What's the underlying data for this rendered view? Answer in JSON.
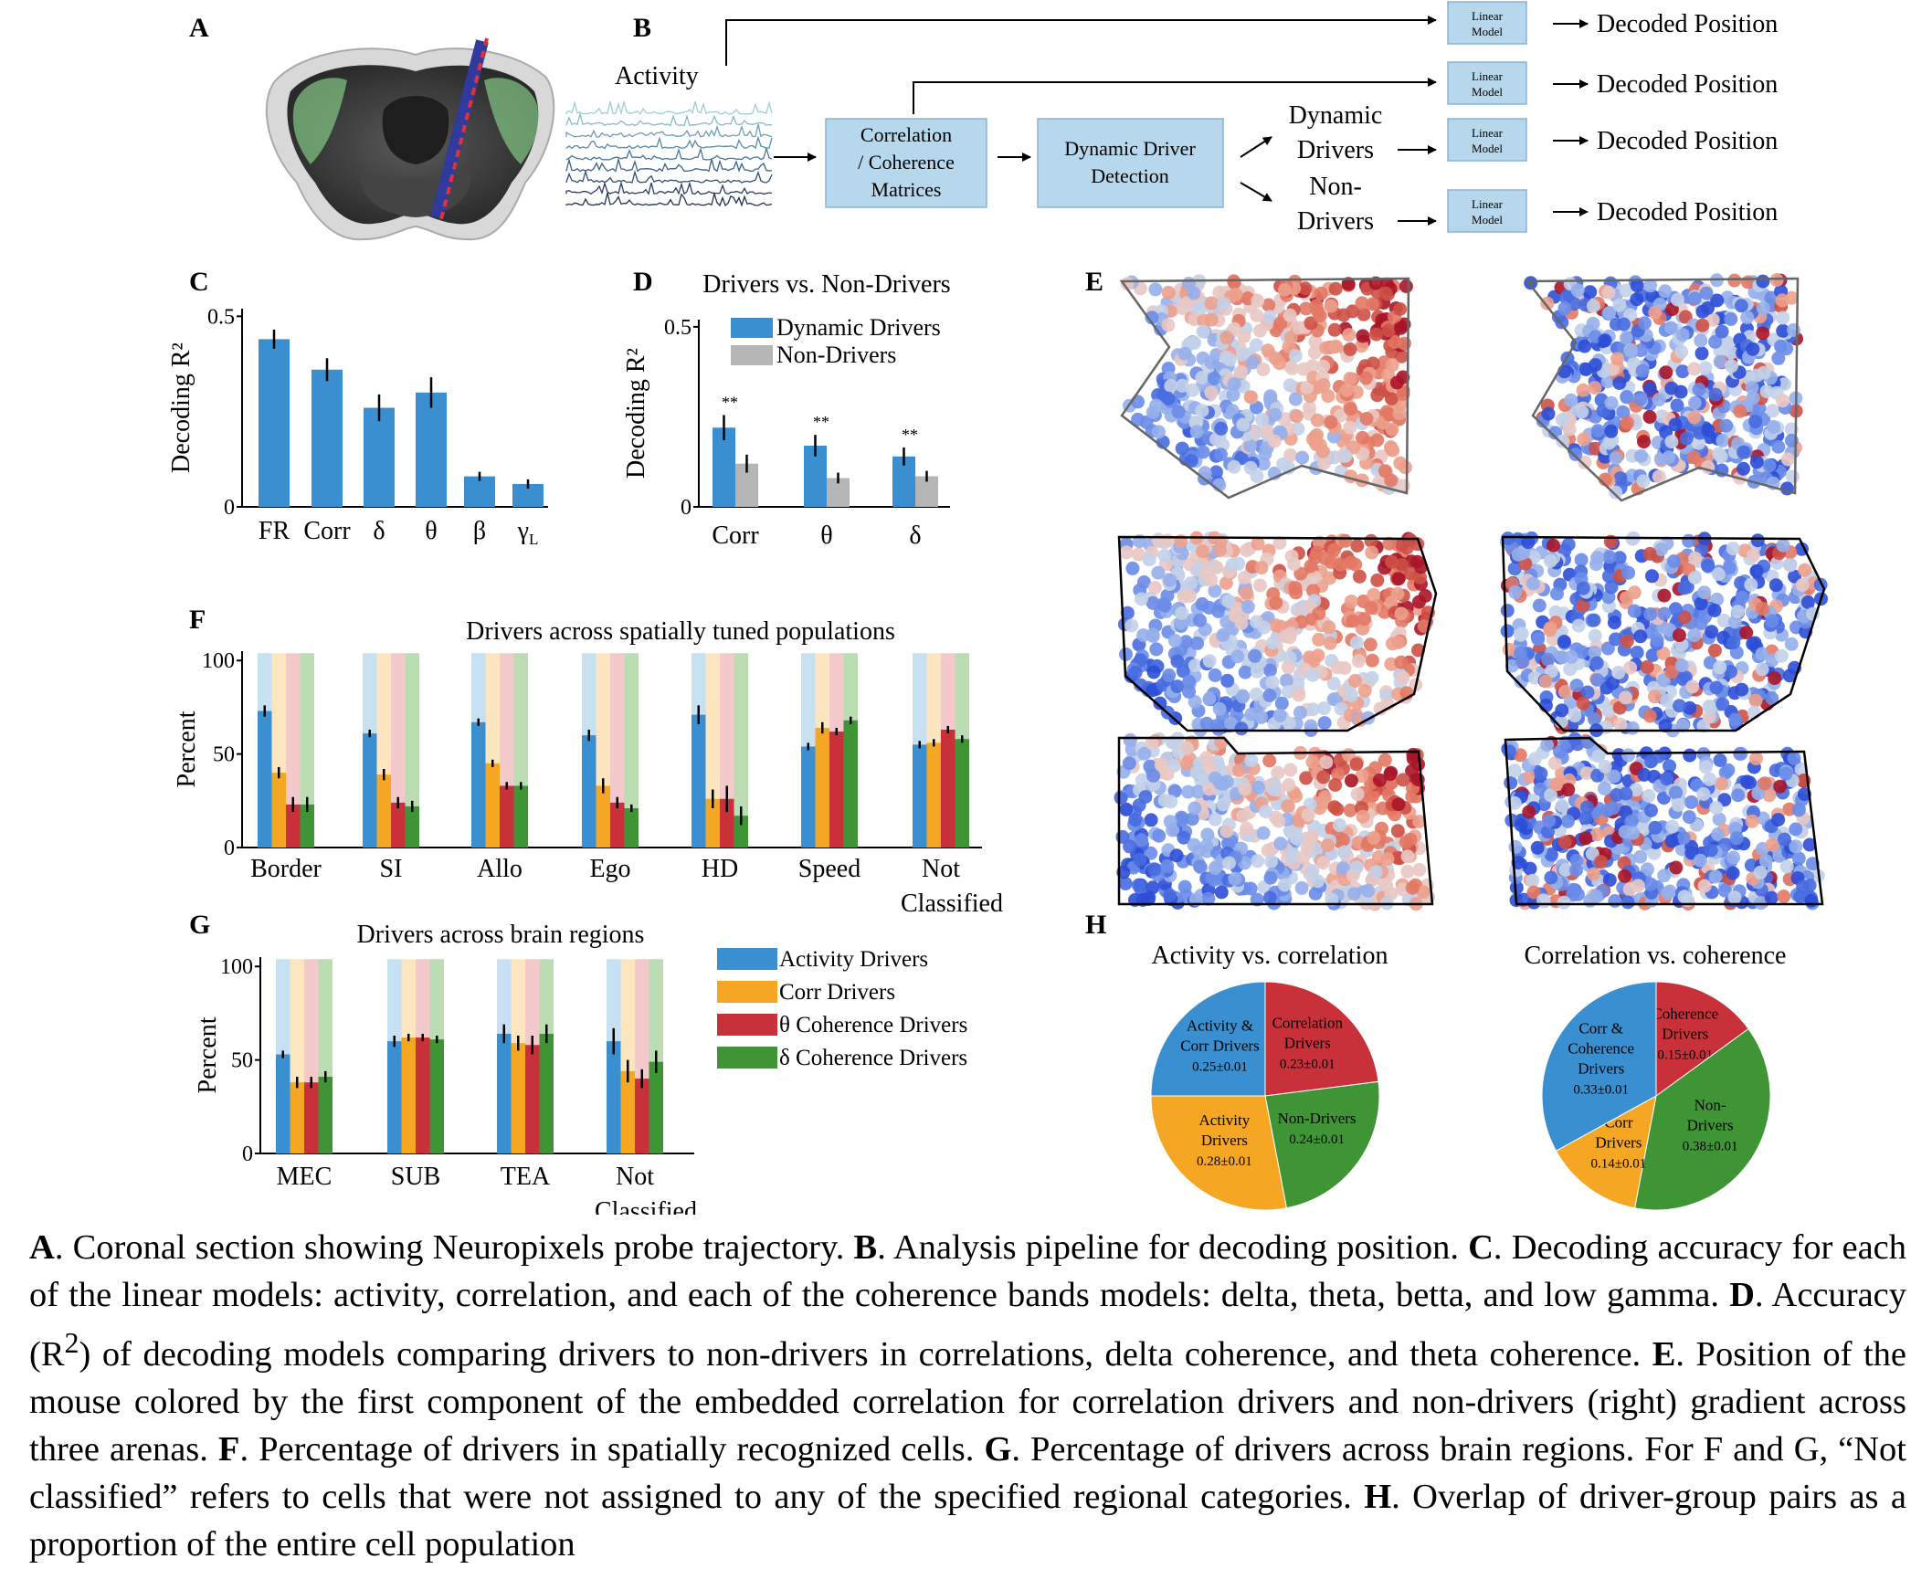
{
  "colors": {
    "activity": "#3a8fd0",
    "corr": "#f5a623",
    "theta": "#c8313a",
    "delta": "#3f9535",
    "nondriver": "#b5b5b5",
    "box": "#b7d8ec",
    "act_faint": "#c7e0f2",
    "corr_faint": "#fde6bf",
    "theta_faint": "#f3c9cb",
    "delta_faint": "#bcdcb4"
  },
  "panel_letters": {
    "A": "A",
    "B": "B",
    "C": "C",
    "D": "D",
    "E": "E",
    "F": "F",
    "G": "G",
    "H": "H"
  },
  "pipeline": {
    "activity_label": "Activity",
    "box1": [
      "Correlation",
      "/ Coherence",
      "Matrices"
    ],
    "box2": [
      "Dynamic Driver",
      "Detection"
    ],
    "dynamic": [
      "Dynamic",
      "Drivers"
    ],
    "nondrivers": [
      "Non-",
      "Drivers"
    ],
    "linear_model": [
      "Linear",
      "Model"
    ],
    "decoded": "Decoded Position"
  },
  "chart_data": [
    {
      "panel": "C",
      "type": "bar",
      "categories": [
        "FR",
        "Corr",
        "δ",
        "θ",
        "β",
        "γ"
      ],
      "category_subscripts": [
        "",
        "",
        "",
        "",
        "",
        "L"
      ],
      "values": [
        0.44,
        0.36,
        0.26,
        0.3,
        0.08,
        0.06
      ],
      "errors": [
        0.025,
        0.03,
        0.035,
        0.04,
        0.012,
        0.012
      ],
      "title": "",
      "ylabel": "Decoding R²",
      "ylim": [
        0,
        0.52
      ],
      "yticks": [
        0,
        0.5
      ],
      "ytick_labels": [
        "0",
        "0.5"
      ]
    },
    {
      "panel": "D",
      "type": "bar",
      "title": "Drivers vs. Non-Drivers",
      "ylabel": "Decoding R²",
      "categories": [
        "Corr",
        "θ",
        "δ"
      ],
      "series": [
        {
          "name": "Dynamic Drivers",
          "values": [
            0.22,
            0.17,
            0.14
          ],
          "errors": [
            0.035,
            0.03,
            0.025
          ]
        },
        {
          "name": "Non-Drivers",
          "values": [
            0.12,
            0.08,
            0.085
          ],
          "errors": [
            0.025,
            0.015,
            0.015
          ]
        }
      ],
      "significance": [
        "**",
        "**",
        "**"
      ],
      "ylim": [
        0,
        0.52
      ],
      "yticks": [
        0,
        0.5
      ],
      "ytick_labels": [
        "0",
        "0.5"
      ],
      "legend": "top-right"
    },
    {
      "panel": "F",
      "type": "bar",
      "title": "Drivers across spatially tuned populations",
      "ylabel": "Percent",
      "categories": [
        "Border",
        "SI",
        "Allo",
        "Ego",
        "HD",
        "Speed",
        "Not Classified"
      ],
      "series": [
        {
          "name": "Activity Drivers",
          "values": [
            73,
            61,
            67,
            60,
            71,
            54,
            55
          ],
          "errors": [
            3,
            2,
            2,
            3,
            5,
            2,
            2
          ]
        },
        {
          "name": "Corr Drivers",
          "values": [
            40,
            39,
            45,
            33,
            26,
            64,
            56
          ],
          "errors": [
            3,
            3,
            2,
            4,
            5,
            3,
            2
          ]
        },
        {
          "name": "θ Coherence Drivers",
          "values": [
            23,
            24,
            33,
            24,
            26,
            62,
            63
          ],
          "errors": [
            4,
            3,
            2,
            3,
            7,
            2,
            2
          ]
        },
        {
          "name": "δ Coherence Drivers",
          "values": [
            23,
            22,
            33,
            21,
            17,
            68,
            58
          ],
          "errors": [
            4,
            3,
            2,
            2,
            5,
            2,
            2
          ]
        }
      ],
      "ylim": [
        0,
        105
      ],
      "yticks": [
        0,
        50,
        100
      ]
    },
    {
      "panel": "G",
      "type": "bar",
      "title": "Drivers across brain regions",
      "ylabel": "Percent",
      "categories": [
        "MEC",
        "SUB",
        "TEA",
        "Not Classified"
      ],
      "series": [
        {
          "name": "Activity Drivers",
          "values": [
            53,
            60,
            64,
            60
          ],
          "errors": [
            2,
            3,
            5,
            7
          ]
        },
        {
          "name": "Corr Drivers",
          "values": [
            38,
            62,
            59,
            44
          ],
          "errors": [
            3,
            2,
            4,
            6
          ]
        },
        {
          "name": "θ Coherence Drivers",
          "values": [
            38,
            62,
            58,
            40
          ],
          "errors": [
            3,
            2,
            5,
            5
          ]
        },
        {
          "name": "δ Coherence Drivers",
          "values": [
            41,
            61,
            64,
            49
          ],
          "errors": [
            3,
            2,
            5,
            6
          ]
        }
      ],
      "ylim": [
        0,
        105
      ],
      "yticks": [
        0,
        50,
        100
      ],
      "legend": "right"
    },
    {
      "panel": "H",
      "type": "pie",
      "title": "Activity vs. correlation",
      "slices": [
        {
          "label": "Activity & Corr Drivers",
          "value": 0.25,
          "text": "0.25±0.01"
        },
        {
          "label": "Correlation Drivers",
          "value": 0.23,
          "text": "0.23±0.01"
        },
        {
          "label": "Non-Drivers",
          "value": 0.24,
          "text": "0.24±0.01"
        },
        {
          "label": "Activity Drivers",
          "value": 0.28,
          "text": "0.28±0.01"
        }
      ]
    },
    {
      "panel": "H",
      "type": "pie",
      "title": "Correlation vs. coherence",
      "slices": [
        {
          "label": "Coherence Drivers",
          "value": 0.15,
          "text": "0.15±0.01"
        },
        {
          "label": "Non-Drivers",
          "value": 0.38,
          "text": "0.38±0.01"
        },
        {
          "label": "Corr Drivers",
          "value": 0.14,
          "text": "0.14±0.01"
        },
        {
          "label": "Corr & Coherence Drivers",
          "value": 0.33,
          "text": "0.33±0.01"
        }
      ]
    }
  ],
  "pie_label_lines": {
    "pie1": [
      [
        "Activity &",
        "Corr Drivers"
      ],
      [
        "Correlation",
        "Drivers"
      ],
      [
        "Non-Drivers"
      ],
      [
        "Activity",
        "Drivers"
      ]
    ],
    "pie2": [
      [
        "Coherence",
        "Drivers"
      ],
      [
        "Non-",
        "Drivers"
      ],
      [
        "Corr",
        "Drivers"
      ],
      [
        "Corr &",
        "Coherence",
        "Drivers"
      ]
    ]
  },
  "caption": [
    {
      "b": "A"
    },
    {
      "t": ". Coronal section showing Neuropixels probe trajectory. "
    },
    {
      "b": "B"
    },
    {
      "t": ". Analysis pipeline for decoding position. "
    },
    {
      "b": "C"
    },
    {
      "t": ". Decoding accuracy for each of the linear models: activity, correlation, and each of the coherence bands models: delta, theta, betta, and low gamma. "
    },
    {
      "b": "D"
    },
    {
      "t": ". Accuracy (R"
    },
    {
      "sup": "2"
    },
    {
      "t": ") of decoding models comparing drivers to non-drivers in correlations, delta coherence, and theta coherence.  "
    },
    {
      "b": "E"
    },
    {
      "t": ". Position of the mouse colored by the first component of the embedded correlation for correlation drivers and non-drivers (right) gradient across three arenas. "
    },
    {
      "b": "F"
    },
    {
      "t": ". Percentage of drivers in spatially recognized cells. "
    },
    {
      "b": "G"
    },
    {
      "t": ". Percentage of drivers across brain regions. For F and G, “Not classified” refers to cells that were not assigned to any of the specified regional categories. "
    },
    {
      "b": "H"
    },
    {
      "t": ". Overlap of driver-group pairs as a proportion of the entire cell population"
    }
  ]
}
